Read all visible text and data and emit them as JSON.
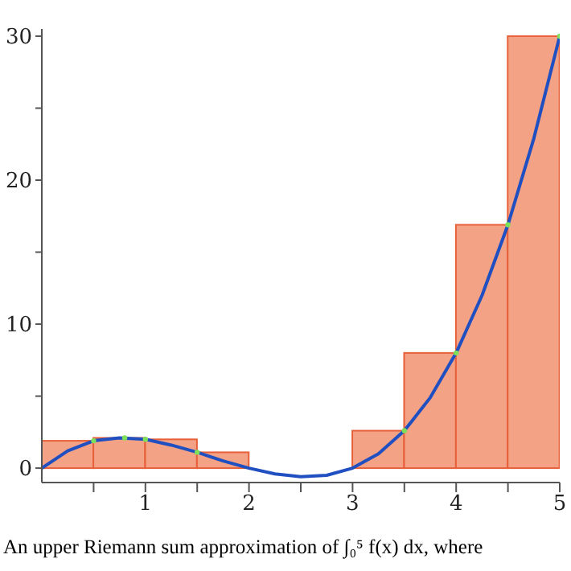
{
  "chart_data": {
    "type": "histogram",
    "annotations": [
      "An upper Riemann sum approximation of ∫₀⁵ f(x) dx, where"
    ],
    "bins": [
      0,
      0.5,
      1,
      1.5,
      2,
      2.5,
      3,
      3.5,
      4,
      4.5,
      5
    ],
    "values": [
      1.9,
      2.1,
      2,
      1.1,
      0,
      0,
      2.6,
      8,
      16.9,
      30
    ],
    "color": "#f4a285",
    "series": [
      {
        "type": "line",
        "marker": "none",
        "color": "#1f4fc0",
        "x": [
          0,
          0.25,
          0.5,
          0.75,
          1,
          1.25,
          1.5,
          1.75,
          2,
          2.25,
          2.5,
          2.75,
          3,
          3.25,
          3.5,
          3.75,
          4,
          4.25,
          4.5,
          4.75,
          5
        ],
        "values": [
          0,
          1.2,
          1.9,
          2.1,
          2,
          1.6,
          1.1,
          0.5,
          0,
          -0.4,
          -0.6,
          -0.5,
          0,
          1,
          2.6,
          4.9,
          8,
          12,
          16.9,
          22.9,
          30
        ]
      },
      {
        "type": "scatter",
        "marker": "circle",
        "color": "#7ee05a",
        "x": [
          0.5,
          0.8,
          1,
          1.5,
          3.5,
          4,
          4.5,
          5
        ],
        "values": [
          1.9,
          2.1,
          2,
          1.1,
          2.6,
          8,
          16.9,
          30
        ]
      }
    ],
    "xlim": [
      0,
      5
    ],
    "xticks": [
      {
        "value": 0.5,
        "label": null
      },
      1,
      {
        "value": 1.5,
        "label": null
      },
      2,
      {
        "value": 2.5,
        "label": null
      },
      3,
      {
        "value": 3.5,
        "label": null
      },
      4,
      {
        "value": 4.5,
        "label": null
      },
      5
    ],
    "ylim": [
      -1,
      30.5
    ],
    "yticks": [
      0,
      {
        "value": 5,
        "label": null
      },
      10,
      {
        "value": 15,
        "label": null
      },
      20,
      {
        "value": 25,
        "label": null
      },
      30
    ],
    "grid": false,
    "legend": false
  }
}
